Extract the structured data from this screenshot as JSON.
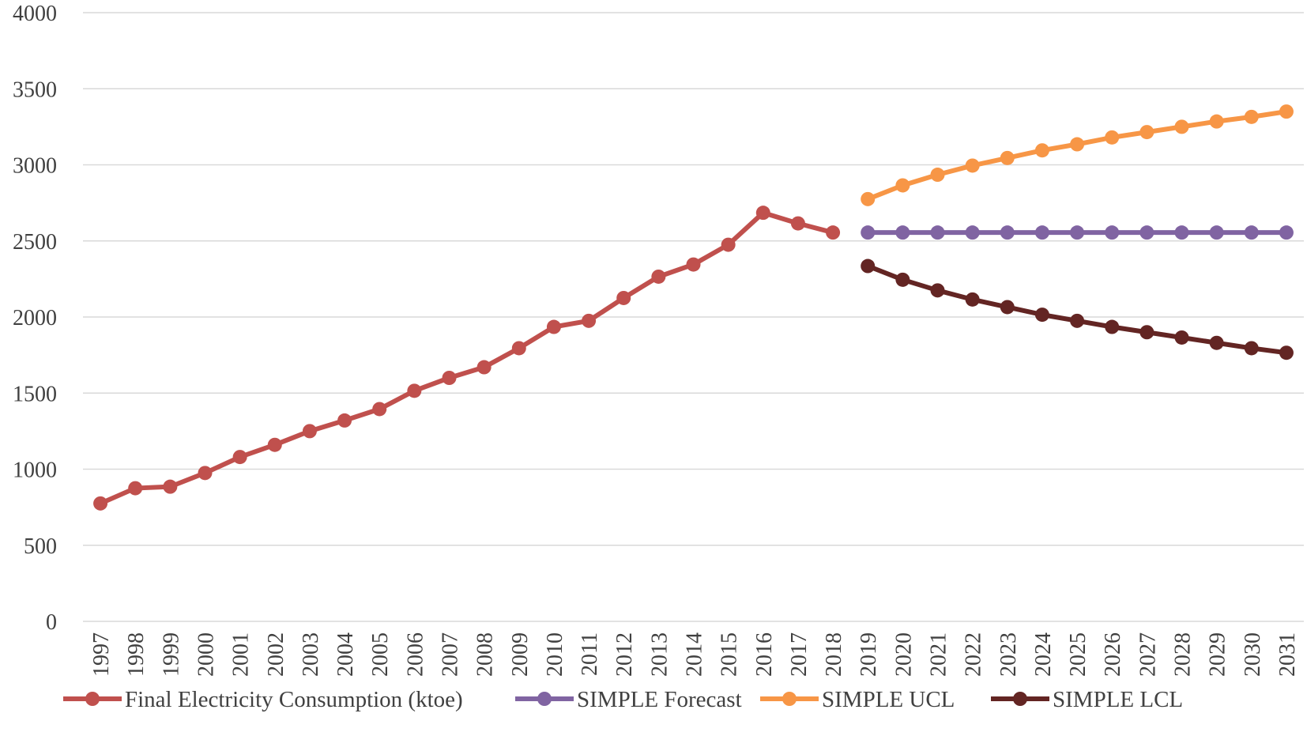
{
  "chart_data": {
    "type": "line",
    "categories": [
      "1997",
      "1998",
      "1999",
      "2000",
      "2001",
      "2002",
      "2003",
      "2004",
      "2005",
      "2006",
      "2007",
      "2008",
      "2009",
      "2010",
      "2011",
      "2012",
      "2013",
      "2014",
      "2015",
      "2016",
      "2017",
      "2018",
      "2019",
      "2020",
      "2021",
      "2022",
      "2023",
      "2024",
      "2025",
      "2026",
      "2027",
      "2028",
      "2029",
      "2030",
      "2031"
    ],
    "ylim": [
      0,
      4000
    ],
    "yticks": [
      0,
      500,
      1000,
      1500,
      2000,
      2500,
      3000,
      3500,
      4000
    ],
    "grid": true,
    "legend_position": "bottom",
    "series": [
      {
        "name": "Final Electricity Consumption (ktoe)",
        "color": "#c0504d",
        "values": [
          775,
          875,
          885,
          975,
          1080,
          1160,
          1250,
          1320,
          1395,
          1515,
          1600,
          1670,
          1795,
          1935,
          1975,
          2125,
          2265,
          2345,
          2475,
          2685,
          2615,
          2555,
          null,
          null,
          null,
          null,
          null,
          null,
          null,
          null,
          null,
          null,
          null,
          null,
          null
        ]
      },
      {
        "name": "SIMPLE Forecast",
        "color": "#8064a2",
        "values": [
          null,
          null,
          null,
          null,
          null,
          null,
          null,
          null,
          null,
          null,
          null,
          null,
          null,
          null,
          null,
          null,
          null,
          null,
          null,
          null,
          null,
          null,
          2555,
          2555,
          2555,
          2555,
          2555,
          2555,
          2555,
          2555,
          2555,
          2555,
          2555,
          2555,
          2555
        ]
      },
      {
        "name": "SIMPLE UCL",
        "color": "#f79646",
        "values": [
          null,
          null,
          null,
          null,
          null,
          null,
          null,
          null,
          null,
          null,
          null,
          null,
          null,
          null,
          null,
          null,
          null,
          null,
          null,
          null,
          null,
          null,
          2775,
          2865,
          2935,
          2995,
          3045,
          3095,
          3135,
          3180,
          3215,
          3250,
          3285,
          3315,
          3350
        ]
      },
      {
        "name": "SIMPLE LCL",
        "color": "#632523",
        "values": [
          null,
          null,
          null,
          null,
          null,
          null,
          null,
          null,
          null,
          null,
          null,
          null,
          null,
          null,
          null,
          null,
          null,
          null,
          null,
          null,
          null,
          null,
          2335,
          2245,
          2175,
          2115,
          2065,
          2015,
          1975,
          1935,
          1900,
          1865,
          1830,
          1795,
          1765
        ]
      }
    ]
  }
}
